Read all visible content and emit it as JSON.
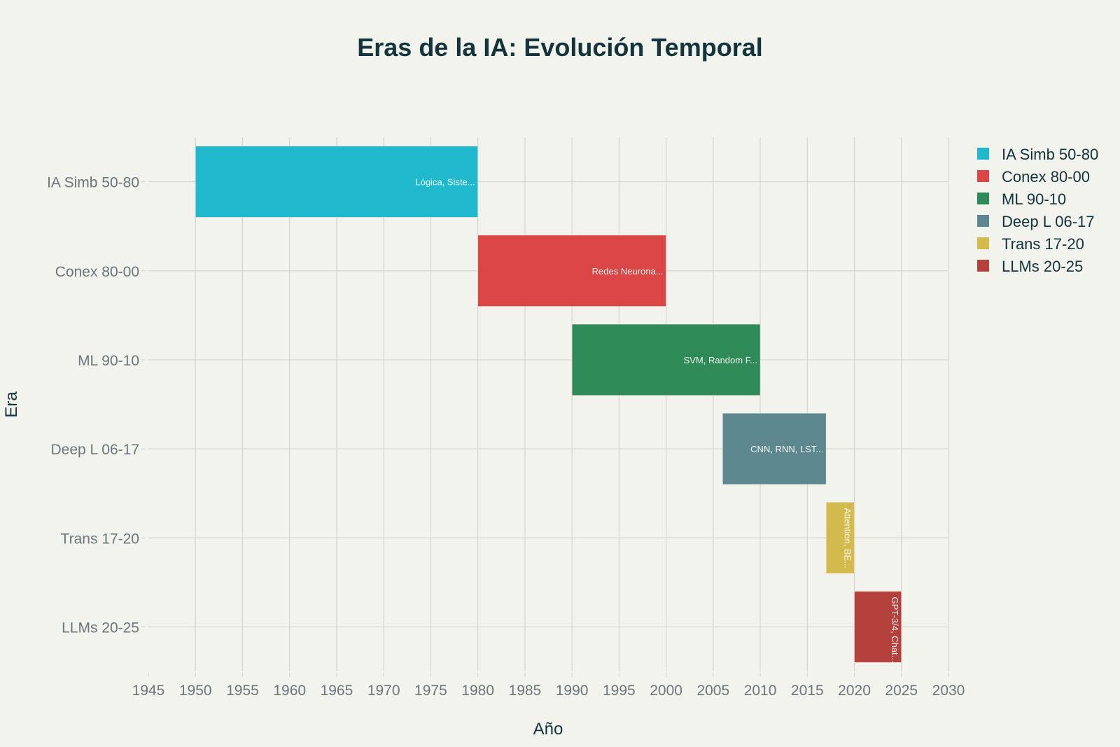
{
  "chart_data": {
    "type": "bar",
    "orientation": "horizontal",
    "subtype": "gantt",
    "title": "Eras de la IA: Evolución Temporal",
    "xlabel": "Año",
    "ylabel": "Era",
    "xlim": [
      1945,
      2030
    ],
    "xticks": [
      1945,
      1950,
      1955,
      1960,
      1965,
      1970,
      1975,
      1980,
      1985,
      1990,
      1995,
      2000,
      2005,
      2010,
      2015,
      2020,
      2025,
      2030
    ],
    "grid": true,
    "legend_position": "top-right",
    "categories": [
      "IA Simb 50-80",
      "Conex 80-00",
      "ML 90-10",
      "Deep L 06-17",
      "Trans 17-20",
      "LLMs 20-25"
    ],
    "series": [
      {
        "name": "IA Simb 50-80",
        "start": 1950,
        "end": 1980,
        "label": "Lógica, Siste...",
        "color": "#1fb8cd",
        "label_orientation": "horizontal"
      },
      {
        "name": "Conex 80-00",
        "start": 1980,
        "end": 2000,
        "label": "Redes Neurona...",
        "color": "#db4545",
        "label_orientation": "horizontal"
      },
      {
        "name": "ML 90-10",
        "start": 1990,
        "end": 2010,
        "label": "SVM, Random F...",
        "color": "#2e8b57",
        "label_orientation": "horizontal"
      },
      {
        "name": "Deep L 06-17",
        "start": 2006,
        "end": 2017,
        "label": "CNN, RNN, LST...",
        "color": "#5d878f",
        "label_orientation": "horizontal"
      },
      {
        "name": "Trans 17-20",
        "start": 2017,
        "end": 2020,
        "label": "Attention, BE...",
        "color": "#d2ba4c",
        "label_orientation": "vertical"
      },
      {
        "name": "LLMs 20-25",
        "start": 2020,
        "end": 2025,
        "label": "GPT-3/4, Chat...",
        "color": "#b4413c",
        "label_orientation": "vertical"
      }
    ]
  }
}
